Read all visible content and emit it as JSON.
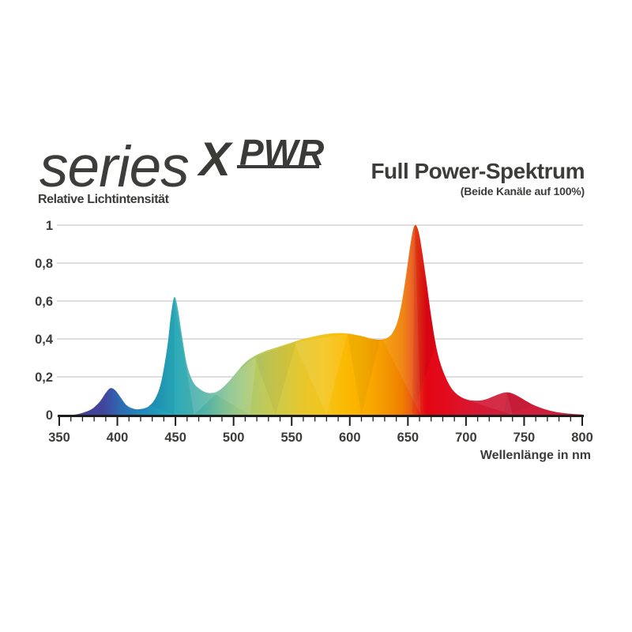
{
  "logo": {
    "series": "series",
    "x": "X",
    "pwr": "PWR"
  },
  "header": {
    "title": "Full Power-Spektrum",
    "subtitle": "(Beide Kanäle auf 100%)"
  },
  "chart_data": {
    "type": "area",
    "title": "Full Power-Spektrum",
    "subtitle": "(Beide Kanäle auf 100%)",
    "xlabel": "Wellenlänge in nm",
    "ylabel": "Relative Lichtintensität",
    "xlim": [
      350,
      800
    ],
    "ylim": [
      0,
      1
    ],
    "grid": true,
    "legend": false,
    "x_major_ticks": [
      350,
      400,
      450,
      500,
      550,
      600,
      650,
      700,
      750,
      800
    ],
    "x_minor_step": 10,
    "y_ticks": [
      {
        "value": 0,
        "label": "0"
      },
      {
        "value": 0.2,
        "label": "0,2"
      },
      {
        "value": 0.4,
        "label": "0,4"
      },
      {
        "value": 0.6,
        "label": "0,6"
      },
      {
        "value": 0.8,
        "label": "0,8"
      },
      {
        "value": 1,
        "label": "1"
      }
    ],
    "series": [
      {
        "name": "Full Power Spektrum (beide Kanäle 100%)",
        "points": [
          [
            350,
            0
          ],
          [
            362,
            0
          ],
          [
            370,
            0.01
          ],
          [
            378,
            0.03
          ],
          [
            385,
            0.07
          ],
          [
            390,
            0.115
          ],
          [
            394,
            0.14
          ],
          [
            398,
            0.13
          ],
          [
            403,
            0.09
          ],
          [
            408,
            0.05
          ],
          [
            414,
            0.032
          ],
          [
            420,
            0.03
          ],
          [
            427,
            0.045
          ],
          [
            433,
            0.09
          ],
          [
            438,
            0.18
          ],
          [
            443,
            0.36
          ],
          [
            446,
            0.52
          ],
          [
            449,
            0.62
          ],
          [
            452,
            0.56
          ],
          [
            456,
            0.4
          ],
          [
            460,
            0.26
          ],
          [
            465,
            0.175
          ],
          [
            470,
            0.14
          ],
          [
            476,
            0.118
          ],
          [
            482,
            0.115
          ],
          [
            488,
            0.13
          ],
          [
            495,
            0.17
          ],
          [
            502,
            0.22
          ],
          [
            510,
            0.275
          ],
          [
            518,
            0.31
          ],
          [
            527,
            0.335
          ],
          [
            537,
            0.355
          ],
          [
            547,
            0.375
          ],
          [
            557,
            0.395
          ],
          [
            567,
            0.41
          ],
          [
            577,
            0.423
          ],
          [
            587,
            0.43
          ],
          [
            595,
            0.43
          ],
          [
            602,
            0.425
          ],
          [
            610,
            0.415
          ],
          [
            618,
            0.402
          ],
          [
            624,
            0.396
          ],
          [
            630,
            0.4
          ],
          [
            636,
            0.425
          ],
          [
            641,
            0.49
          ],
          [
            645,
            0.6
          ],
          [
            649,
            0.76
          ],
          [
            653,
            0.93
          ],
          [
            656,
            1.0
          ],
          [
            659,
            0.97
          ],
          [
            662,
            0.87
          ],
          [
            666,
            0.7
          ],
          [
            670,
            0.52
          ],
          [
            674,
            0.37
          ],
          [
            678,
            0.27
          ],
          [
            683,
            0.19
          ],
          [
            688,
            0.135
          ],
          [
            694,
            0.1
          ],
          [
            700,
            0.082
          ],
          [
            706,
            0.075
          ],
          [
            712,
            0.075
          ],
          [
            718,
            0.083
          ],
          [
            724,
            0.098
          ],
          [
            730,
            0.112
          ],
          [
            735,
            0.118
          ],
          [
            740,
            0.112
          ],
          [
            746,
            0.094
          ],
          [
            752,
            0.072
          ],
          [
            758,
            0.052
          ],
          [
            765,
            0.035
          ],
          [
            772,
            0.022
          ],
          [
            780,
            0.012
          ],
          [
            790,
            0.005
          ],
          [
            800,
            0.001
          ]
        ]
      }
    ],
    "peaks": [
      {
        "nm": 394,
        "value": 0.14
      },
      {
        "nm": 449,
        "value": 0.62
      },
      {
        "nm": 590,
        "value": 0.43
      },
      {
        "nm": 656,
        "value": 1.0
      },
      {
        "nm": 735,
        "value": 0.12
      }
    ],
    "gradient_stops": [
      [
        350,
        "#474090"
      ],
      [
        388,
        "#40459c"
      ],
      [
        396,
        "#3558a8"
      ],
      [
        404,
        "#2b6db3"
      ],
      [
        418,
        "#2383ba"
      ],
      [
        432,
        "#1f97bc"
      ],
      [
        446,
        "#27aabe"
      ],
      [
        462,
        "#3fadae"
      ],
      [
        478,
        "#57b4a4"
      ],
      [
        492,
        "#7fc093"
      ],
      [
        505,
        "#9cc883"
      ],
      [
        518,
        "#b3ca67"
      ],
      [
        532,
        "#c6ca52"
      ],
      [
        548,
        "#d9c93c"
      ],
      [
        562,
        "#e9c629"
      ],
      [
        578,
        "#f3c51c"
      ],
      [
        592,
        "#fbbc06"
      ],
      [
        606,
        "#fbb300"
      ],
      [
        620,
        "#f8a500"
      ],
      [
        634,
        "#f39200"
      ],
      [
        645,
        "#ef7e00"
      ],
      [
        653,
        "#ea5c13"
      ],
      [
        659,
        "#e52e12"
      ],
      [
        666,
        "#e30613"
      ],
      [
        682,
        "#e20b1c"
      ],
      [
        695,
        "#dc1229"
      ],
      [
        710,
        "#d51833"
      ],
      [
        725,
        "#d11c38"
      ],
      [
        745,
        "#ce1e3b"
      ],
      [
        800,
        "#cc203e"
      ]
    ],
    "colors": {
      "axis": "#1d1d1b",
      "grid": "#c9c9c9",
      "text": "#3c3c3b"
    }
  }
}
